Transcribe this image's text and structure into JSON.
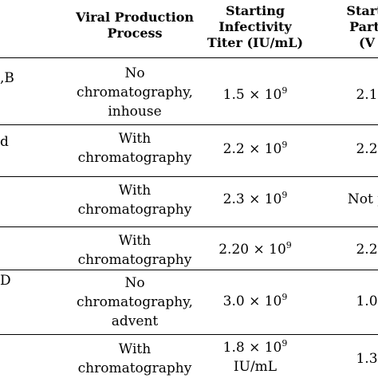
{
  "headers": {
    "process": [
      "Viral Production",
      "Process"
    ],
    "titer": [
      "Starting",
      "Infectivity",
      "Titer (IU/mL)"
    ],
    "particle": [
      "Starti",
      "Parti",
      "(V"
    ]
  },
  "rows": [
    {
      "col0": ",B",
      "process": [
        "No",
        "chromatography,",
        "inhouse"
      ],
      "titer": {
        "mantissa": "1.5 × 10",
        "exp": "9"
      },
      "particle": "2.1"
    },
    {
      "col0": "d",
      "process": [
        "With",
        "chromatography"
      ],
      "titer": {
        "mantissa": "2.2 × 10",
        "exp": "9"
      },
      "particle": "2.2"
    },
    {
      "col0": "",
      "process": [
        "With",
        "chromatography"
      ],
      "titer": {
        "mantissa": "2.3 × 10",
        "exp": "9"
      },
      "particle": "Not p"
    },
    {
      "col0": "",
      "process": [
        "With",
        "chromatography"
      ],
      "titer": {
        "mantissa": "2.20 × 10",
        "exp": "9"
      },
      "particle": "2.2"
    },
    {
      "col0": "D",
      "process": [
        "No",
        "chromatography,",
        "advent"
      ],
      "titer": {
        "mantissa": "3.0 × 10",
        "exp": "9"
      },
      "particle": "1.0"
    },
    {
      "col0": "",
      "process": [
        "With",
        "chromatography"
      ],
      "titer": {
        "mantissa": "1.8 × 10",
        "exp": "9",
        "unit": "IU/mL"
      },
      "particle": "1.3"
    }
  ]
}
